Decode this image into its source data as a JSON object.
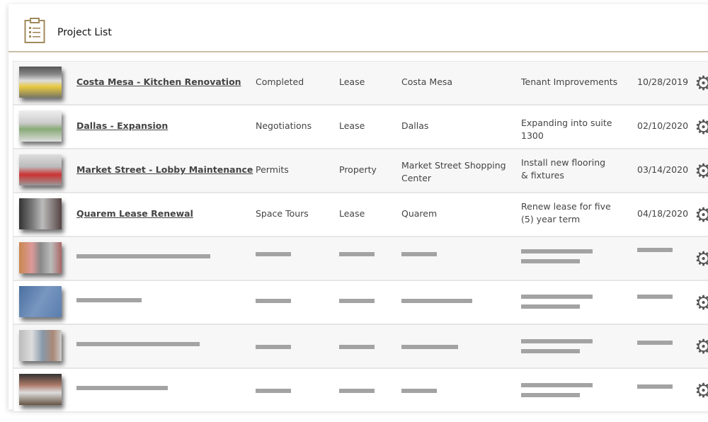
{
  "header": {
    "title": "Project List",
    "icon": "clipboard-list-icon",
    "accent": "#a08a5c"
  },
  "projects": [
    {
      "name": "Costa Mesa - Kitchen Renovation",
      "status": "Completed",
      "type": "Lease",
      "location": "Costa Mesa",
      "description": "Tenant Improvements",
      "date": "10/28/2019"
    },
    {
      "name": "Dallas - Expansion",
      "status": "Negotiations",
      "type": "Lease",
      "location": "Dallas",
      "description": "Expanding into suite 1300",
      "date": "02/10/2020"
    },
    {
      "name": "Market Street - Lobby Maintenance",
      "status": "Permits",
      "type": "Property",
      "location": "Market Street Shopping Center",
      "description": "Install new flooring & fixtures",
      "date": "03/14/2020"
    },
    {
      "name": "Quarem Lease Renewal",
      "status": "Space Tours",
      "type": "Lease",
      "location": "Quarem",
      "description": "Renew lease for five (5) year term",
      "date": "04/18/2020"
    }
  ],
  "row_action_icon": "gear-icon"
}
